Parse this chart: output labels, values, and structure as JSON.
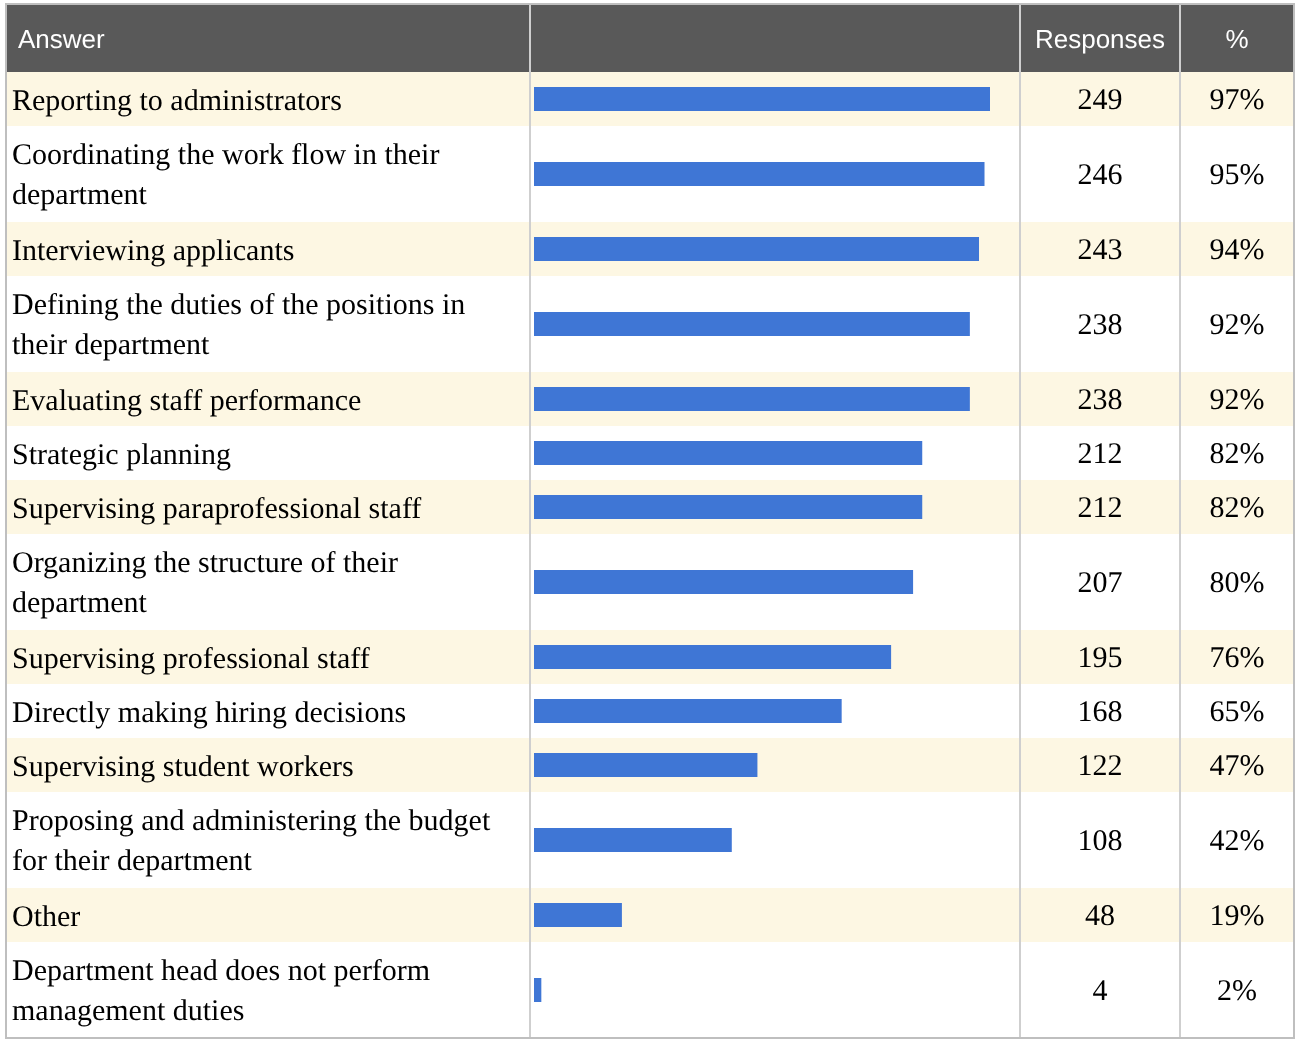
{
  "chart_data": {
    "type": "bar",
    "orientation": "horizontal",
    "ylabel": "Answer",
    "xlabel": "Responses",
    "color": "#3f76d5",
    "data_labels": true,
    "categories": [
      "Reporting to administrators",
      "Coordinating the work flow in their department",
      "Interviewing applicants",
      "Defining the duties of the positions in their department",
      "Evaluating staff performance",
      "Strategic planning",
      "Supervising paraprofessional staff",
      "Organizing the structure of their department",
      "Supervising professional staff",
      "Directly making hiring decisions",
      "Supervising student workers",
      "Proposing and administering the budget for their department",
      "Other",
      "Department head does not perform management duties"
    ],
    "values": [
      249,
      246,
      243,
      238,
      238,
      212,
      212,
      207,
      195,
      168,
      122,
      108,
      48,
      4
    ],
    "annotations": [
      "%",
      "97%",
      "95%",
      "94%",
      "92%",
      "92%",
      "82%",
      "82%",
      "80%",
      "76%",
      "65%",
      "47%",
      "42%",
      "19%",
      "2%"
    ]
  }
}
